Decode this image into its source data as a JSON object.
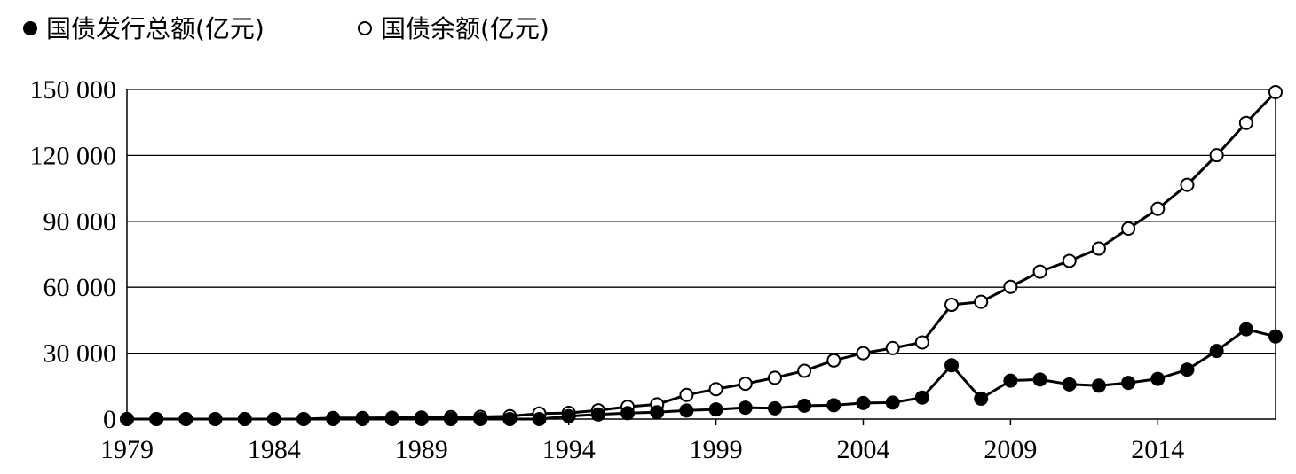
{
  "chart_data": {
    "type": "line",
    "title": "",
    "xlabel": "",
    "ylabel": "",
    "ylim": [
      0,
      150000
    ],
    "xlim": [
      1979,
      2018
    ],
    "grid": "horizontal",
    "legend_placement": "top-left",
    "y_ticks": [
      0,
      30000,
      60000,
      90000,
      120000,
      150000
    ],
    "y_tick_labels": [
      "0",
      "30 000",
      "60 000",
      "90 000",
      "120 000",
      "150 000"
    ],
    "x_ticks": [
      1979,
      1984,
      1989,
      1994,
      1999,
      2004,
      2009,
      2014
    ],
    "x_tick_labels": [
      "1979",
      "1984",
      "1989",
      "1994",
      "1999",
      "2004",
      "2009",
      "2014"
    ],
    "x": [
      1979,
      1980,
      1981,
      1982,
      1983,
      1984,
      1985,
      1986,
      1987,
      1988,
      1989,
      1990,
      1991,
      1992,
      1993,
      1994,
      1995,
      1996,
      1997,
      1998,
      1999,
      2000,
      2001,
      2002,
      2003,
      2004,
      2005,
      2006,
      2007,
      2008,
      2009,
      2010,
      2011,
      2012,
      2013,
      2014,
      2015,
      2016,
      2017,
      2018
    ],
    "series": [
      {
        "name": "国债发行总额(亿元)",
        "marker": "filled-circle",
        "color": "#000000",
        "values": [
          0,
          0,
          0,
          0,
          0,
          0,
          0,
          0,
          0,
          0,
          0,
          0,
          0,
          0,
          0,
          1300,
          2100,
          2700,
          3100,
          3900,
          4400,
          5200,
          4900,
          6100,
          6300,
          7300,
          7500,
          9800,
          24500,
          9300,
          17500,
          18000,
          15800,
          15200,
          16500,
          18300,
          22500,
          31000,
          40900,
          37600
        ]
      },
      {
        "name": "国债余额(亿元)",
        "marker": "open-circle",
        "color": "#000000",
        "values": [
          0,
          0,
          0,
          0,
          0,
          0,
          0,
          500,
          500,
          600,
          700,
          900,
          1000,
          1300,
          2500,
          2800,
          4000,
          5600,
          6700,
          11000,
          13600,
          16100,
          18800,
          22000,
          26700,
          30000,
          32300,
          34900,
          52000,
          53400,
          60200,
          67100,
          72000,
          77600,
          86700,
          95700,
          106600,
          120100,
          134800,
          148800
        ]
      }
    ]
  }
}
